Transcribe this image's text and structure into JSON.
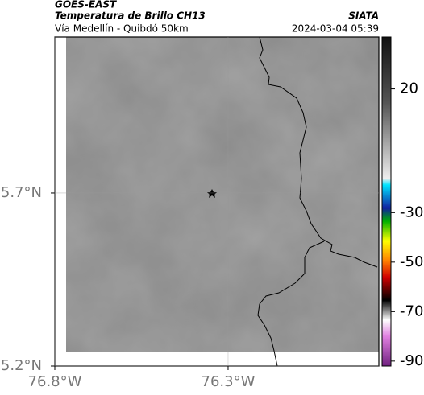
{
  "header": {
    "source": "GOES-EAST",
    "title": "Temperatura de Brillo CH13",
    "org": "SIATA",
    "region": "Vía Medellín - Quibdó 50km",
    "datetime": "2024-03-04 05:39"
  },
  "map": {
    "lon_lim": [
      -76.8,
      -75.865
    ],
    "lat_lim": [
      5.2,
      6.151
    ],
    "lat_ticks": [
      {
        "value": 5.7,
        "label": "5.7°N"
      },
      {
        "value": 5.2,
        "label": "5.2°N"
      }
    ],
    "lon_ticks": [
      {
        "value": -76.8,
        "label": "76.8°W"
      },
      {
        "value": -76.3,
        "label": "76.3°W"
      }
    ]
  },
  "colorbar": {
    "lim": [
      41,
      -92
    ],
    "ticks": [
      20,
      -30,
      -50,
      -70,
      -90
    ]
  }
}
